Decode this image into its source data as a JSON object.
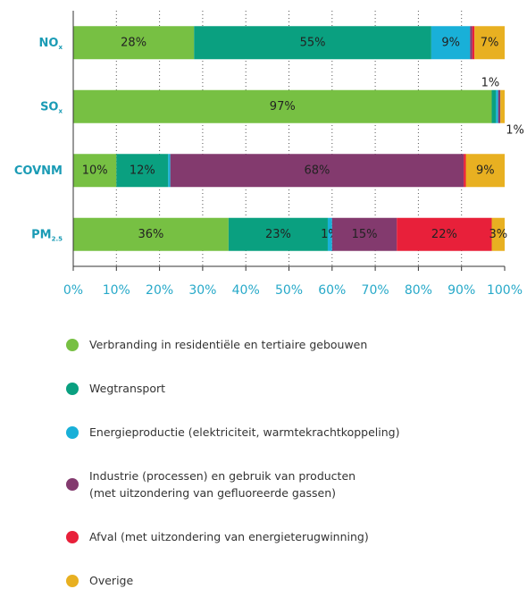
{
  "chart_data": {
    "type": "stacked-barh",
    "categories": [
      "NO",
      "SO",
      "COVNM",
      "PM"
    ],
    "category_subscripts": [
      "x",
      "x",
      null,
      "2.5"
    ],
    "series": [
      {
        "name": "Verbranding in residentiële en tertiaire gebouwen",
        "color": "#77c043",
        "values": [
          28,
          97,
          10,
          36
        ],
        "value_labels": [
          "28%",
          "97%",
          "10%",
          "36%"
        ]
      },
      {
        "name": "Wegtransport",
        "color": "#0aa080",
        "values": [
          55,
          1,
          12,
          23
        ],
        "value_labels": [
          "55%",
          "1%",
          "12%",
          "23%"
        ]
      },
      {
        "name": "Energieproductie (elektriciteit, warmtekrachtkoppeling)",
        "color": "#19b0d8",
        "values": [
          9,
          0.5,
          0.5,
          1
        ],
        "value_labels": [
          "9%",
          null,
          null,
          "1%"
        ]
      },
      {
        "name": "Industrie (processen) en gebruik van producten\n(met uitzondering van gefluoreerde gassen)",
        "color": "#833a6e",
        "values": [
          0.5,
          0.5,
          68,
          15
        ],
        "value_labels": [
          null,
          null,
          "68%",
          "15%"
        ]
      },
      {
        "name": "Afval (met uitzondering van energieterugwinning)",
        "color": "#e8203a",
        "values": [
          0.5,
          0,
          0.5,
          22
        ],
        "value_labels": [
          null,
          null,
          null,
          "22%"
        ]
      },
      {
        "name": "Overige",
        "color": "#e8b021",
        "values": [
          7,
          1,
          9,
          3
        ],
        "value_labels": [
          "7%",
          "1%",
          "9%",
          "3%"
        ]
      }
    ],
    "xlim": [
      0,
      100
    ],
    "xticks": [
      {
        "value": 0,
        "label": "0%"
      },
      {
        "value": 10,
        "label": "10%"
      },
      {
        "value": 20,
        "label": "20%"
      },
      {
        "value": 30,
        "label": "30%"
      },
      {
        "value": 40,
        "label": "40%"
      },
      {
        "value": 50,
        "label": "50%"
      },
      {
        "value": 60,
        "label": "60%"
      },
      {
        "value": 70,
        "label": "70%"
      },
      {
        "value": 80,
        "label": "80%"
      },
      {
        "value": 90,
        "label": "90%"
      },
      {
        "value": 100,
        "label": "100%"
      }
    ],
    "grid": true
  }
}
